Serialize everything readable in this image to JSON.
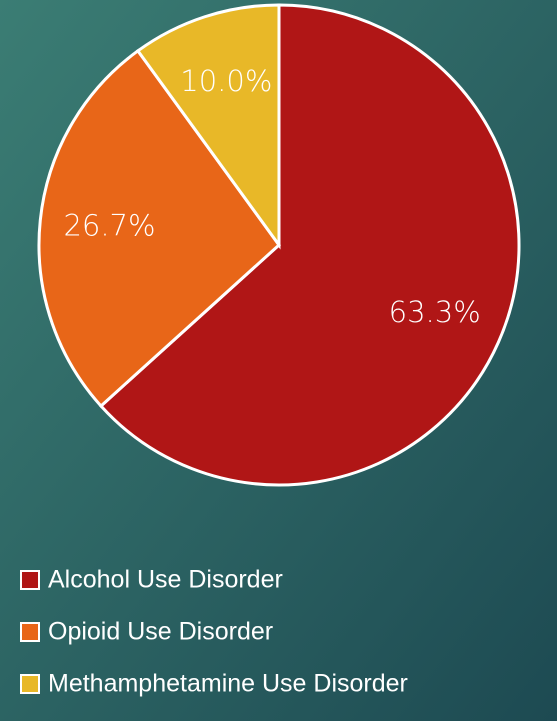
{
  "chart_data": {
    "type": "pie",
    "categories": [
      "Alcohol Use Disorder",
      "Opioid Use Disorder",
      "Methamphetamine Use Disorder"
    ],
    "values": [
      63.3,
      26.7,
      10.0
    ],
    "value_labels": [
      "63.3%",
      "26.7%",
      "10.0%"
    ],
    "colors": [
      "#b01616",
      "#e86618",
      "#e8b828"
    ]
  }
}
